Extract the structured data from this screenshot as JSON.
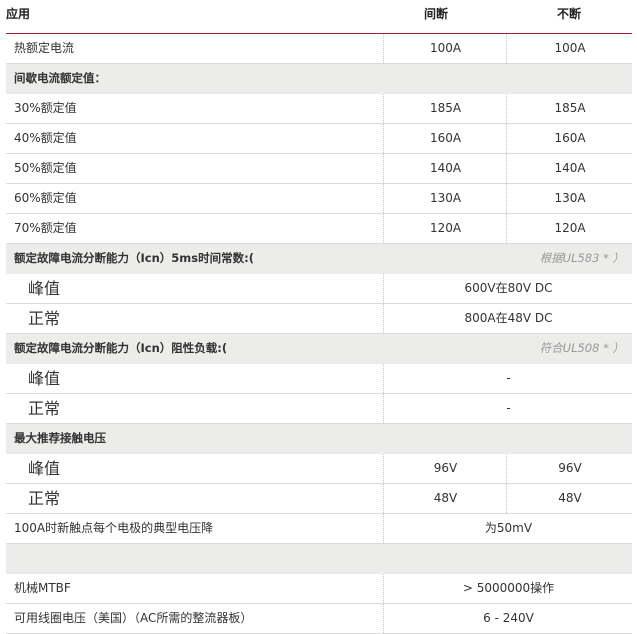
{
  "header": {
    "col1": "应用",
    "col2": "间断",
    "col3": "不断"
  },
  "rows": [
    {
      "label": "热额定电流",
      "v1": "100A",
      "v2": "100A"
    },
    {
      "label": "间歇电流额定值：",
      "section": true
    },
    {
      "label": "30%额定值",
      "v1": "185A",
      "v2": "185A"
    },
    {
      "label": "40%额定值",
      "v1": "160A",
      "v2": "160A"
    },
    {
      "label": "50%额定值",
      "v1": "140A",
      "v2": "140A"
    },
    {
      "label": "60%额定值",
      "v1": "130A",
      "v2": "130A"
    },
    {
      "label": "70%额定值",
      "v1": "120A",
      "v2": "120A"
    },
    {
      "label": "额定故障电流分断能力（Icn）5ms时间常数:(",
      "note": "根据UL583 * ）",
      "section": true
    },
    {
      "label": "峰值",
      "value": "600V在80V DC"
    },
    {
      "label": "正常",
      "value": "800A在48V DC"
    },
    {
      "label": "额定故障电流分断能力（Icn）阻性负载:(",
      "note": "符合UL508 * ）",
      "section": true
    },
    {
      "label": "峰值",
      "value": "-"
    },
    {
      "label": "正常",
      "value": "-"
    },
    {
      "label": "最大推荐接触电压",
      "section": true
    },
    {
      "label": "峰值",
      "v1": "96V",
      "v2": "96V"
    },
    {
      "label": "正常",
      "v1": "48V",
      "v2": "48V"
    },
    {
      "label": "100A时新触点每个电极的典型电压降",
      "value": "为50mV"
    },
    {
      "label": "",
      "section": true
    },
    {
      "label": "机械MTBF",
      "value": "> 5000000操作"
    },
    {
      "label": "可用线圈电压（美国）（AC所需的整流器板）",
      "value": "6 - 240V"
    }
  ]
}
